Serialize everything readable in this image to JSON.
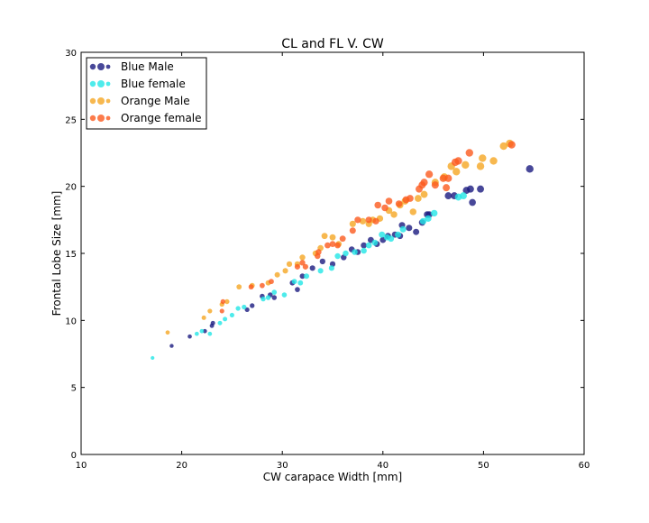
{
  "chart_data": {
    "type": "scatter",
    "title": "CL and FL V. CW",
    "xlabel": "CW carapace Width [mm]",
    "ylabel": "Frontal  Lobe  Size [mm]",
    "xlim": [
      10,
      60
    ],
    "ylim": [
      0,
      30
    ],
    "xticks": [
      "10",
      "20",
      "30",
      "40",
      "50",
      "60"
    ],
    "yticks": [
      "0",
      "5",
      "10",
      "15",
      "20",
      "25",
      "30"
    ],
    "grid": false,
    "legend_position": "top-left",
    "series": [
      {
        "name": "Blue Male",
        "color": "#1a1a80",
        "points": [
          [
            19.0,
            8.1
          ],
          [
            20.8,
            8.8
          ],
          [
            22.3,
            9.2
          ],
          [
            23.0,
            9.6
          ],
          [
            23.1,
            9.8
          ],
          [
            26.5,
            10.8
          ],
          [
            27.0,
            11.1
          ],
          [
            28.0,
            11.8
          ],
          [
            28.8,
            11.9
          ],
          [
            29.2,
            11.7
          ],
          [
            31.0,
            12.8
          ],
          [
            31.5,
            12.3
          ],
          [
            32.0,
            13.3
          ],
          [
            33.0,
            13.9
          ],
          [
            34.0,
            14.4
          ],
          [
            35.0,
            14.2
          ],
          [
            36.1,
            14.7
          ],
          [
            36.9,
            15.3
          ],
          [
            37.5,
            15.1
          ],
          [
            38.1,
            15.6
          ],
          [
            38.8,
            16.0
          ],
          [
            39.4,
            15.7
          ],
          [
            40.0,
            16.0
          ],
          [
            40.5,
            16.3
          ],
          [
            41.2,
            16.4
          ],
          [
            41.7,
            16.3
          ],
          [
            41.9,
            17.1
          ],
          [
            42.6,
            16.9
          ],
          [
            43.3,
            16.6
          ],
          [
            43.9,
            17.3
          ],
          [
            44.4,
            17.9
          ],
          [
            44.6,
            17.9
          ],
          [
            46.5,
            19.3
          ],
          [
            47.1,
            19.3
          ],
          [
            48.3,
            19.7
          ],
          [
            48.7,
            19.8
          ],
          [
            48.9,
            18.8
          ],
          [
            49.7,
            19.8
          ],
          [
            54.6,
            21.3
          ]
        ]
      },
      {
        "name": "Blue female",
        "color": "#22e6e6",
        "points": [
          [
            17.1,
            7.2
          ],
          [
            21.5,
            9.0
          ],
          [
            22.0,
            9.2
          ],
          [
            22.8,
            9.0
          ],
          [
            23.8,
            9.8
          ],
          [
            24.3,
            10.1
          ],
          [
            25.0,
            10.4
          ],
          [
            25.6,
            10.9
          ],
          [
            26.2,
            11.0
          ],
          [
            28.1,
            11.6
          ],
          [
            28.6,
            11.7
          ],
          [
            29.2,
            12.1
          ],
          [
            30.2,
            11.9
          ],
          [
            31.2,
            12.9
          ],
          [
            31.8,
            12.8
          ],
          [
            32.4,
            13.3
          ],
          [
            33.8,
            13.7
          ],
          [
            34.9,
            13.9
          ],
          [
            35.5,
            14.8
          ],
          [
            36.3,
            15.0
          ],
          [
            37.2,
            15.1
          ],
          [
            38.1,
            15.2
          ],
          [
            38.6,
            15.6
          ],
          [
            39.2,
            15.8
          ],
          [
            39.9,
            16.4
          ],
          [
            40.4,
            16.2
          ],
          [
            40.8,
            16.1
          ],
          [
            41.5,
            16.4
          ],
          [
            42.0,
            16.8
          ],
          [
            44.0,
            17.4
          ],
          [
            44.5,
            17.6
          ],
          [
            45.1,
            18.0
          ],
          [
            47.5,
            19.2
          ],
          [
            48.0,
            19.3
          ]
        ]
      },
      {
        "name": "Orange Male",
        "color": "#f5a623",
        "points": [
          [
            18.6,
            9.1
          ],
          [
            22.2,
            10.2
          ],
          [
            22.8,
            10.7
          ],
          [
            24.0,
            11.2
          ],
          [
            24.5,
            11.4
          ],
          [
            25.7,
            12.5
          ],
          [
            27.0,
            12.6
          ],
          [
            28.6,
            12.8
          ],
          [
            29.5,
            13.4
          ],
          [
            30.3,
            13.7
          ],
          [
            30.7,
            14.2
          ],
          [
            31.5,
            14.2
          ],
          [
            32.0,
            14.7
          ],
          [
            33.3,
            15.0
          ],
          [
            33.8,
            15.4
          ],
          [
            34.2,
            16.3
          ],
          [
            35.0,
            16.2
          ],
          [
            35.6,
            15.7
          ],
          [
            37.0,
            17.2
          ],
          [
            38.0,
            17.4
          ],
          [
            38.6,
            17.2
          ],
          [
            39.0,
            17.5
          ],
          [
            39.7,
            17.6
          ],
          [
            40.6,
            18.2
          ],
          [
            41.1,
            17.9
          ],
          [
            41.7,
            18.6
          ],
          [
            42.2,
            18.9
          ],
          [
            43.0,
            18.1
          ],
          [
            43.5,
            19.1
          ],
          [
            44.1,
            19.4
          ],
          [
            45.2,
            20.3
          ],
          [
            46.1,
            20.7
          ],
          [
            46.8,
            21.5
          ],
          [
            47.3,
            21.1
          ],
          [
            48.2,
            21.6
          ],
          [
            49.7,
            21.5
          ],
          [
            49.9,
            22.1
          ],
          [
            51.0,
            21.9
          ],
          [
            52.0,
            23.0
          ],
          [
            52.6,
            23.2
          ]
        ]
      },
      {
        "name": "Orange female",
        "color": "#fb5a1e",
        "points": [
          [
            24.0,
            10.7
          ],
          [
            24.1,
            11.4
          ],
          [
            26.9,
            12.5
          ],
          [
            28.0,
            12.6
          ],
          [
            28.9,
            12.9
          ],
          [
            31.5,
            14.0
          ],
          [
            32.0,
            14.3
          ],
          [
            32.3,
            14.0
          ],
          [
            33.5,
            14.8
          ],
          [
            33.6,
            15.1
          ],
          [
            34.5,
            15.6
          ],
          [
            35.0,
            15.7
          ],
          [
            35.5,
            15.6
          ],
          [
            36.0,
            16.1
          ],
          [
            37.0,
            16.7
          ],
          [
            37.5,
            17.5
          ],
          [
            38.6,
            17.5
          ],
          [
            39.3,
            17.4
          ],
          [
            39.5,
            18.6
          ],
          [
            40.2,
            18.4
          ],
          [
            40.6,
            18.9
          ],
          [
            41.6,
            18.7
          ],
          [
            42.3,
            19.0
          ],
          [
            42.7,
            19.1
          ],
          [
            43.6,
            19.8
          ],
          [
            43.9,
            20.1
          ],
          [
            44.1,
            20.3
          ],
          [
            44.6,
            20.9
          ],
          [
            45.2,
            20.1
          ],
          [
            46.0,
            20.6
          ],
          [
            46.3,
            19.9
          ],
          [
            46.5,
            20.6
          ],
          [
            47.2,
            21.8
          ],
          [
            47.5,
            21.9
          ],
          [
            48.6,
            22.5
          ],
          [
            52.8,
            23.1
          ]
        ]
      }
    ]
  }
}
